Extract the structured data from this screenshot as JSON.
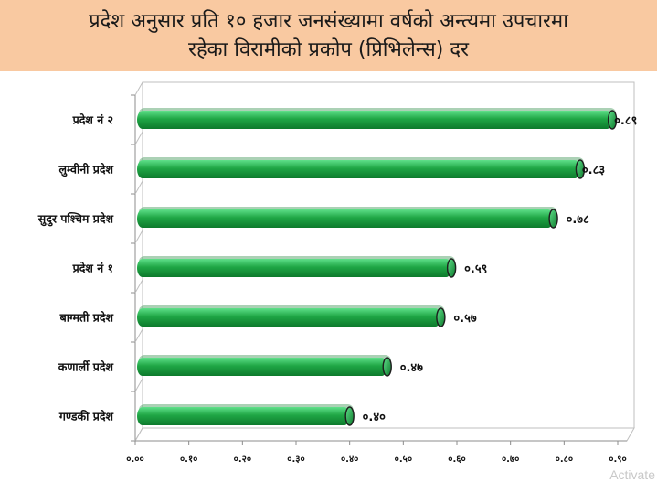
{
  "title": {
    "line1": "प्रदेश अनुसार प्रति १० हजार जनसंख्यामा वर्षको अन्त्यमा उपचारमा",
    "line2": "रहेका विरामीको प्रकोप (प्रिभिलेन्स) दर"
  },
  "colors": {
    "title_background": "#f9c9a1",
    "bar": "#1fa645",
    "bar_light": "#5fe08a",
    "bar_dark": "#0d7a2c"
  },
  "chart_data": {
    "type": "bar",
    "orientation": "horizontal",
    "categories": [
      "प्रदेश नं २",
      "लुम्वीनी प्रदेश",
      "सुदुर पश्चिम प्रदेश",
      "प्रदेश नं १",
      "बाग्मती प्रदेश",
      "कणार्ली प्रदेश",
      "गण्डकी प्रदेश"
    ],
    "values": [
      0.89,
      0.83,
      0.78,
      0.59,
      0.57,
      0.47,
      0.4
    ],
    "value_labels": [
      "०.८९",
      "०.८३",
      "०.७८",
      "०.५९",
      "०.५७",
      "०.४७",
      "०.४०"
    ],
    "xlim": [
      0,
      0.9
    ],
    "ticks": [
      0,
      0.1,
      0.2,
      0.3,
      0.4,
      0.5,
      0.6,
      0.7,
      0.8,
      0.9
    ],
    "tick_labels": [
      "०.००",
      "०.१०",
      "०.२०",
      "०.३०",
      "०.४०",
      "०.५०",
      "०.६०",
      "०.७०",
      "०.८०",
      "०.९०"
    ],
    "gridlines": false,
    "title": "",
    "xlabel": "",
    "ylabel": ""
  },
  "watermark": "Activate"
}
